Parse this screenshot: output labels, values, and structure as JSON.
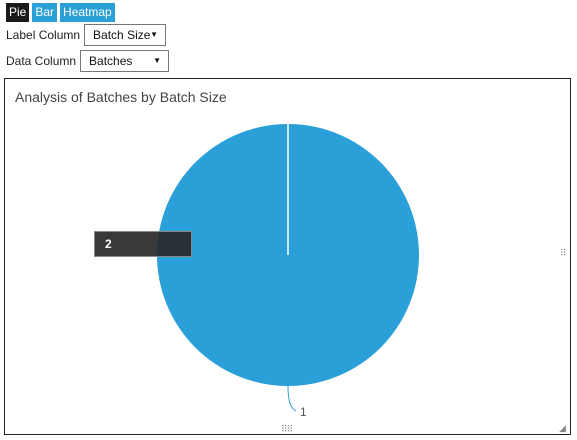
{
  "tabs": [
    {
      "label": "Pie",
      "active": true
    },
    {
      "label": "Bar",
      "active": false
    },
    {
      "label": "Heatmap",
      "active": false
    }
  ],
  "label_column": {
    "label": "Label Column",
    "value": "Batch Size"
  },
  "data_column": {
    "label": "Data Column",
    "value": "Batches"
  },
  "chart": {
    "title": "Analysis of Batches by Batch Size",
    "tooltip_value": "2",
    "colors": {
      "slice": "#2a9fd8",
      "leader": "#2a9fd8"
    }
  },
  "chart_data": {
    "type": "pie",
    "title": "Analysis of Batches by Batch Size",
    "categories": [
      "1"
    ],
    "values": [
      2
    ]
  }
}
